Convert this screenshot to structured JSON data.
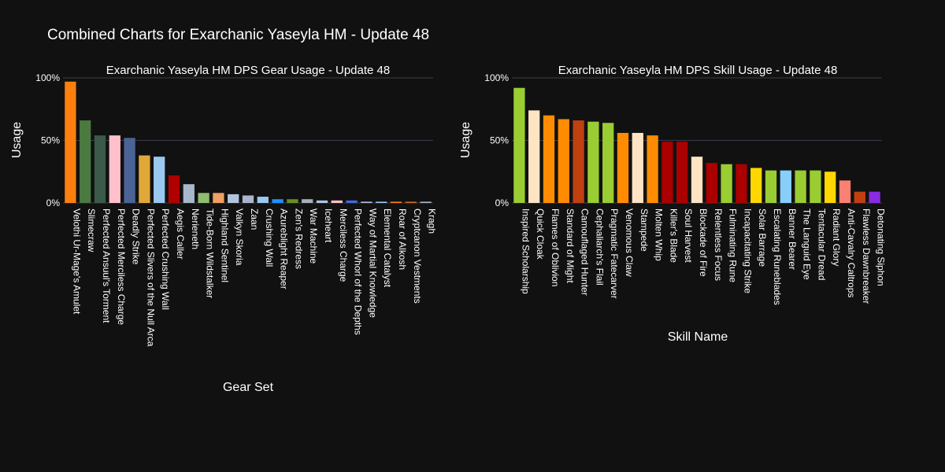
{
  "title": "Combined Charts for Exarchanic Yaseyla HM - Update 48",
  "chart_data": [
    {
      "type": "bar",
      "title": "Exarchanic Yaseyla HM DPS Gear Usage - Update 48",
      "xlabel": "Gear Set",
      "ylabel": "Usage",
      "ylim": [
        0,
        100
      ],
      "yticks": [
        "0%",
        "50%",
        "100%"
      ],
      "grid": true,
      "categories": [
        "Velothi Ur-Mage's Amulet",
        "Slimecraw",
        "Perfected Ansuul's Torment",
        "Perfected Merciless Charge",
        "Deadly Strike",
        "Perfected Slivers of the Null Arca",
        "Perfected Crushing Wall",
        "Aegis Caller",
        "Nerieneth",
        "Tide-Born Wildstalker",
        "Highland Sentinel",
        "Valkyn Skoria",
        "Zaan",
        "Crushing Wall",
        "Azureblight Reaper",
        "Zen's Redress",
        "War Machine",
        "Iceheart",
        "Merciless Charge",
        "Perfected Whorl of the Depths",
        "Way of Martial Knowledge",
        "Elemental Catalyst",
        "Roar of Alkosh",
        "Cryptcanon Vestments",
        "Kragh"
      ],
      "values": [
        97,
        66,
        54,
        54,
        52,
        38,
        37,
        22,
        15,
        8,
        8,
        7,
        6,
        5,
        3,
        3,
        3,
        2,
        2,
        2,
        1,
        1,
        1,
        1,
        1
      ],
      "colors": [
        "#ff7f0e",
        "#4a7a40",
        "#3b5a4a",
        "#ffc0cb",
        "#4a6496",
        "#e0a838",
        "#9ac8f0",
        "#b00000",
        "#a8b8cc",
        "#8fbc70",
        "#f0a060",
        "#b0c4de",
        "#aab4cc",
        "#9ac8f0",
        "#1e90ff",
        "#6b8e23",
        "#a8b0b8",
        "#b0c4de",
        "#ffc0cb",
        "#4169e1",
        "#b0c4de",
        "#9ac8f0",
        "#ff7f0e",
        "#d2691e",
        "#a8b8cc"
      ]
    },
    {
      "type": "bar",
      "title": "Exarchanic Yaseyla HM DPS Skill Usage - Update 48",
      "xlabel": "Skill Name",
      "ylabel": "Usage",
      "ylim": [
        0,
        100
      ],
      "yticks": [
        "0%",
        "50%",
        "100%"
      ],
      "grid": true,
      "categories": [
        "Inspired Scholarship",
        "Quick Cloak",
        "Flames of Oblivion",
        "Standard of Might",
        "Camouflaged Hunter",
        "Cephaliarch's Flail",
        "Pragmatic Fatecarver",
        "Venomous Claw",
        "Stampede",
        "Molten Whip",
        "Killer's Blade",
        "Soul Harvest",
        "Blockade of Fire",
        "Relentless Focus",
        "Fulminating Rune",
        "Incapacitating Strike",
        "Solar Barrage",
        "Escalating Runeblades",
        "Banner Bearer",
        "The Languid Eye",
        "Tentacular Dread",
        "Radiant Glory",
        "Anti-Cavalry Caltrops",
        "Flawless Dawnbreaker",
        "Detonating Siphon"
      ],
      "values": [
        92,
        74,
        70,
        67,
        66,
        65,
        64,
        56,
        56,
        54,
        49,
        49,
        37,
        32,
        31,
        31,
        28,
        26,
        26,
        26,
        26,
        25,
        18,
        9,
        9
      ],
      "colors": [
        "#9acd32",
        "#ffe4c4",
        "#ff8c00",
        "#ff8c00",
        "#c04010",
        "#9acd32",
        "#9acd32",
        "#ff8c00",
        "#ffe4c4",
        "#ff8c00",
        "#aa0000",
        "#aa0000",
        "#ffe4c4",
        "#aa0000",
        "#9acd32",
        "#aa0000",
        "#ffd700",
        "#9acd32",
        "#87cefa",
        "#9acd32",
        "#9acd32",
        "#ffd700",
        "#fa8072",
        "#c04010",
        "#8a2be2"
      ]
    }
  ]
}
